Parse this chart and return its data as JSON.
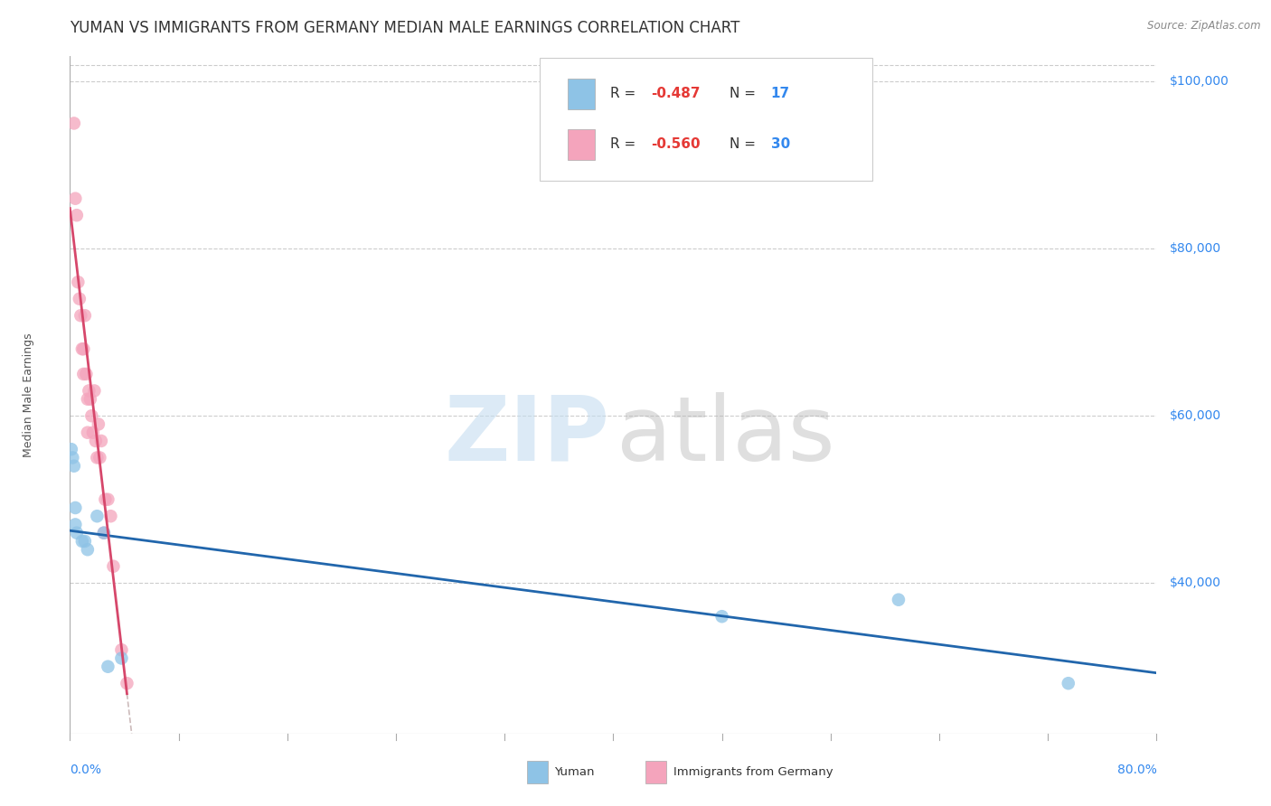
{
  "title": "YUMAN VS IMMIGRANTS FROM GERMANY MEDIAN MALE EARNINGS CORRELATION CHART",
  "source": "Source: ZipAtlas.com",
  "ylabel": "Median Male Earnings",
  "yuman_color": "#8ec3e6",
  "germany_color": "#f4a4bc",
  "yuman_line_color": "#2166ac",
  "germany_line_color": "#d6476b",
  "dash_color": "#ccbbbb",
  "background_color": "#ffffff",
  "grid_color": "#cccccc",
  "xmin": 0.0,
  "xmax": 0.8,
  "ymin": 22000,
  "ymax": 103000,
  "yticks": [
    40000,
    60000,
    80000,
    100000
  ],
  "ytick_labels": [
    "$40,000",
    "$60,000",
    "$80,000",
    "$100,000"
  ],
  "yuman_x": [
    0.001,
    0.002,
    0.003,
    0.004,
    0.004,
    0.005,
    0.009,
    0.011,
    0.013,
    0.02,
    0.025,
    0.028,
    0.038,
    0.48,
    0.61,
    0.735
  ],
  "yuman_y": [
    56000,
    55000,
    54000,
    49000,
    47000,
    46000,
    45000,
    45000,
    44000,
    48000,
    46000,
    30000,
    31000,
    36000,
    38000,
    28000
  ],
  "germany_x": [
    0.003,
    0.004,
    0.005,
    0.006,
    0.007,
    0.008,
    0.009,
    0.01,
    0.01,
    0.011,
    0.012,
    0.013,
    0.013,
    0.014,
    0.015,
    0.016,
    0.017,
    0.018,
    0.019,
    0.02,
    0.021,
    0.022,
    0.023,
    0.025,
    0.026,
    0.028,
    0.03,
    0.032,
    0.038,
    0.042
  ],
  "germany_y": [
    95000,
    86000,
    84000,
    76000,
    74000,
    72000,
    68000,
    65000,
    68000,
    72000,
    65000,
    62000,
    58000,
    63000,
    62000,
    60000,
    58000,
    63000,
    57000,
    55000,
    59000,
    55000,
    57000,
    46000,
    50000,
    50000,
    48000,
    42000,
    32000,
    28000
  ],
  "germany_line_xstart": 0.0,
  "germany_line_xend": 0.042,
  "germany_dash_xstart": 0.042,
  "germany_dash_xend": 0.52,
  "title_fontsize": 12,
  "axis_label_fontsize": 9,
  "tick_fontsize": 10,
  "legend_fontsize": 11,
  "watermark_zip_color": "#c5ddf0",
  "watermark_atlas_color": "#b8b8b8"
}
